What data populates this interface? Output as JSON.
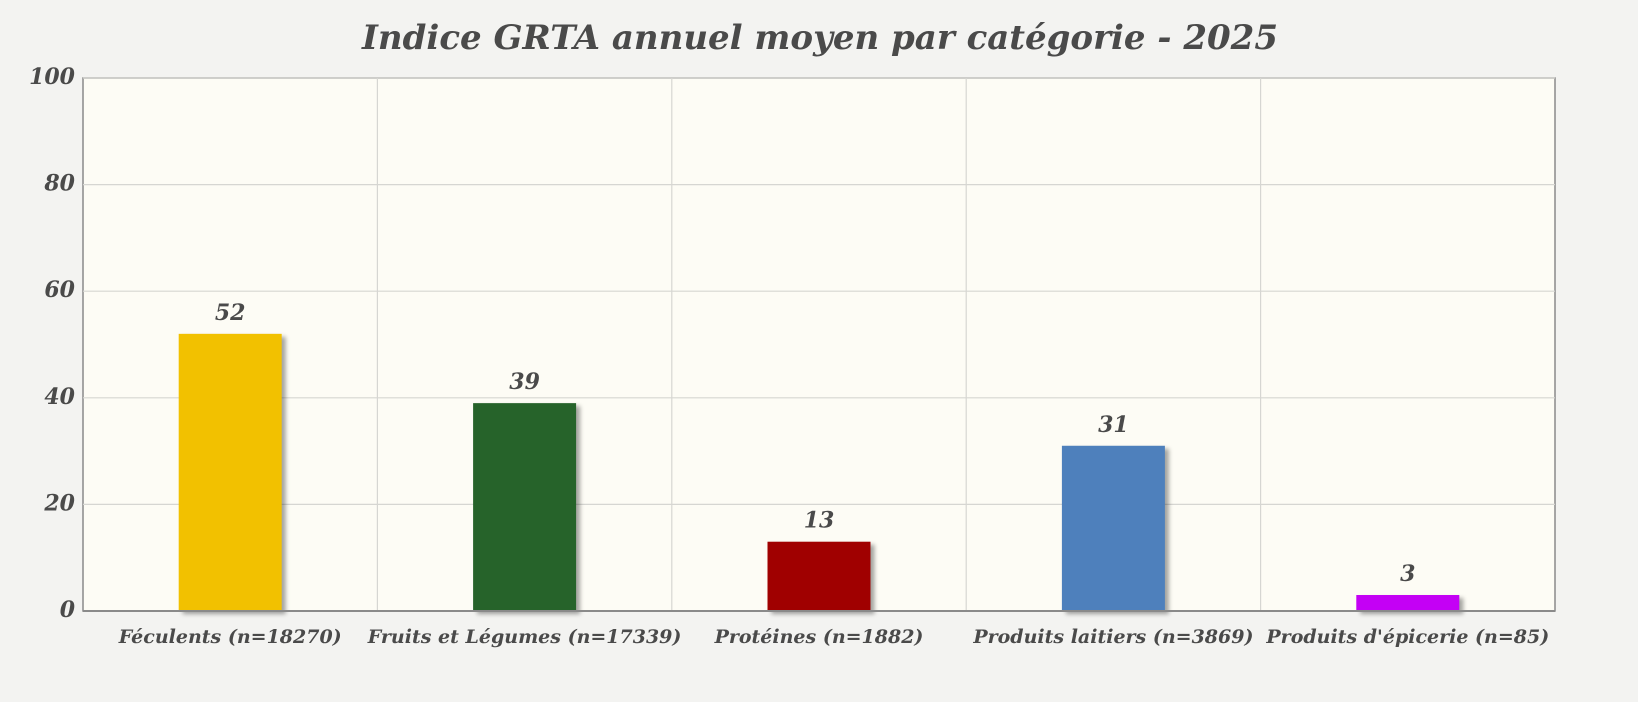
{
  "chart_data": {
    "type": "bar",
    "title": "Indice GRTA annuel moyen par catégorie - 2025",
    "categories": [
      "Féculents (n=18270)",
      "Fruits et Légumes (n=17339)",
      "Protéines (n=1882)",
      "Produits laitiers (n=3869)",
      "Produits d'épicerie (n=85)"
    ],
    "values": [
      52,
      39,
      13,
      31,
      3
    ],
    "colors": [
      "#f2c100",
      "#26632a",
      "#a00000",
      "#4e80bc",
      "#c400f5"
    ],
    "ylim": [
      0,
      100
    ],
    "yticks": [
      0,
      20,
      40,
      60,
      80,
      100
    ],
    "grid": true
  }
}
